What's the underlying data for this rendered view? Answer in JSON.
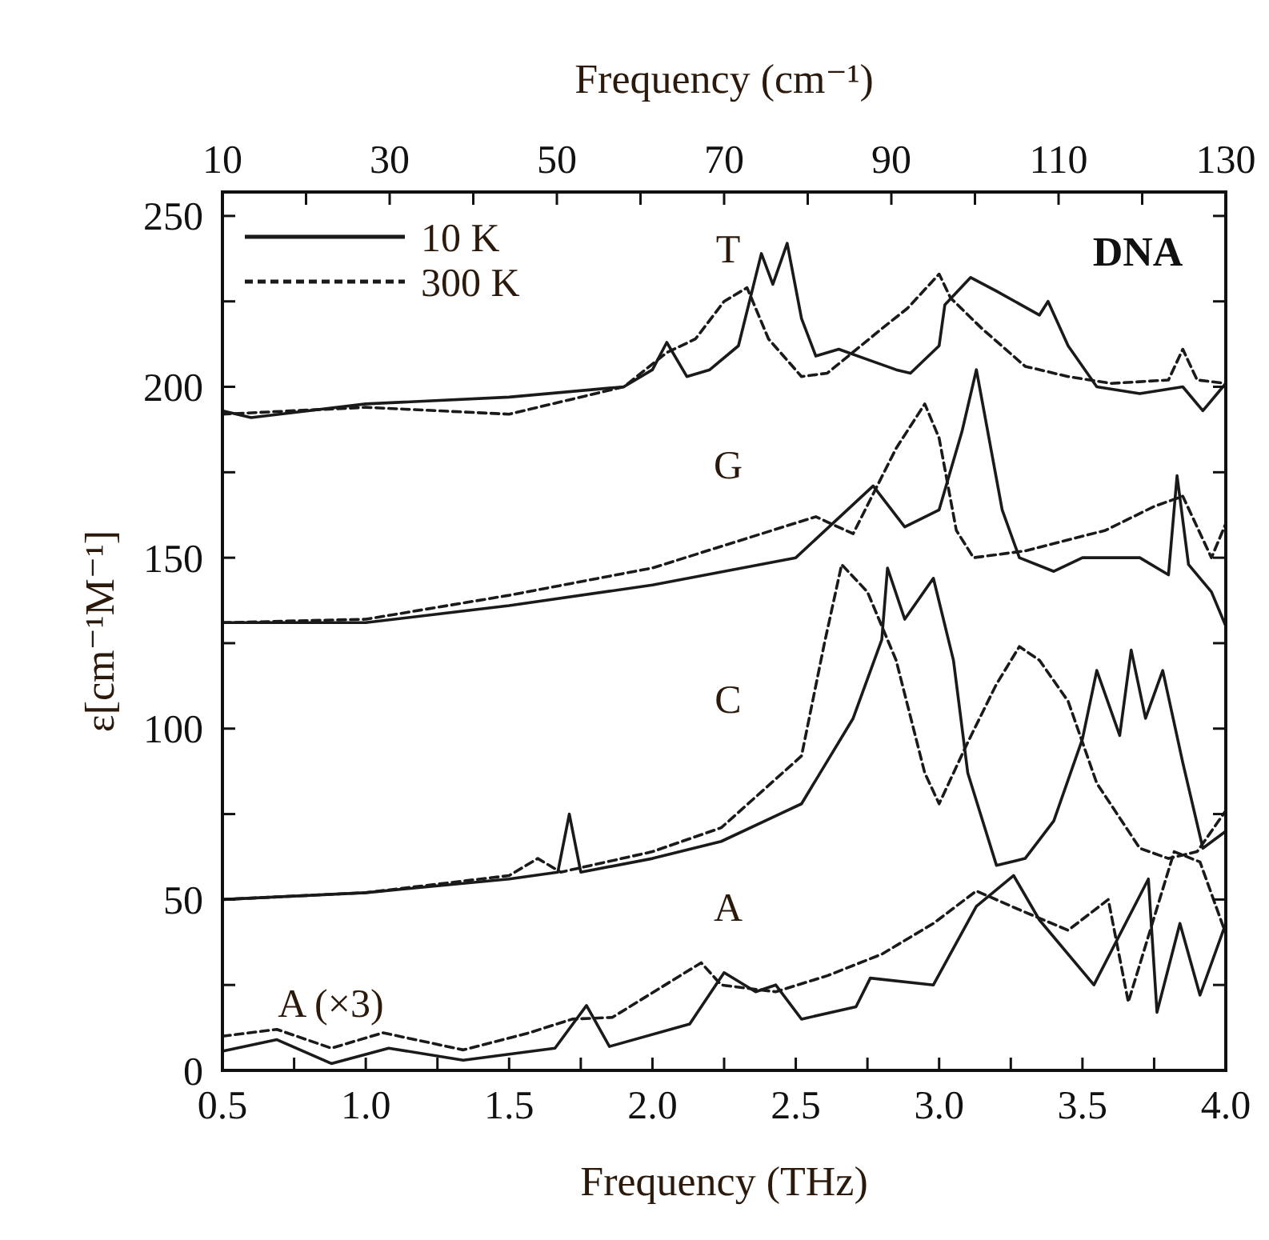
{
  "chart_data": {
    "type": "line",
    "title": "DNA",
    "xlabel": "Frequency (THz)",
    "x2label": "Frequency (cm⁻¹)",
    "ylabel": "ε[cm⁻¹M⁻¹]",
    "xlim": [
      0.5,
      4.0
    ],
    "ylim": [
      0,
      257
    ],
    "x2lim": [
      10,
      130
    ],
    "xticks": [
      {
        "value": 0.5,
        "label": "0.5"
      },
      {
        "value": 0.75,
        "label": null
      },
      {
        "value": 1,
        "label": "1.0"
      },
      {
        "value": 1.25,
        "label": null
      },
      {
        "value": 1.5,
        "label": "1.5"
      },
      {
        "value": 1.75,
        "label": null
      },
      {
        "value": 2,
        "label": "2.0"
      },
      {
        "value": 2.25,
        "label": null
      },
      {
        "value": 2.5,
        "label": "2.5"
      },
      {
        "value": 2.75,
        "label": null
      },
      {
        "value": 3,
        "label": "3.0"
      },
      {
        "value": 3.25,
        "label": null
      },
      {
        "value": 3.5,
        "label": "3.5"
      },
      {
        "value": 3.75,
        "label": null
      },
      {
        "value": 4,
        "label": "4.0"
      }
    ],
    "x2ticks": [
      10,
      {
        "value": 20,
        "label": null
      },
      30,
      {
        "value": 40,
        "label": null
      },
      50,
      {
        "value": 60,
        "label": null
      },
      70,
      {
        "value": 80,
        "label": null
      },
      90,
      {
        "value": 100,
        "label": null
      },
      110,
      {
        "value": 120,
        "label": null
      },
      130
    ],
    "yticks": [
      0,
      {
        "value": 25,
        "label": null
      },
      50,
      {
        "value": 75,
        "label": null
      },
      100,
      {
        "value": 125,
        "label": null
      },
      150,
      {
        "value": 175,
        "label": null
      },
      200,
      {
        "value": 225,
        "label": null
      },
      250
    ],
    "legend": "top left",
    "grid": false,
    "marker": "none",
    "series": [
      {
        "name": "10 K",
        "color": "#1a1a1a",
        "line_style": "solid",
        "x": [
          0.5,
          0.6,
          1.0,
          1.5,
          1.9,
          2.0,
          2.05,
          2.12,
          2.2,
          2.3,
          2.38,
          2.42,
          2.47,
          2.52,
          2.57,
          2.65,
          2.75,
          2.85,
          2.9,
          3.0,
          3.02,
          3.11,
          3.2,
          3.35,
          3.38,
          3.45,
          3.55,
          3.7,
          3.85,
          3.92,
          4.0
        ],
        "values": [
          193,
          191,
          195,
          197,
          200,
          205,
          213,
          203,
          205,
          212,
          239,
          230,
          242,
          220,
          209,
          211,
          208,
          205,
          204,
          212,
          224,
          232,
          228,
          221,
          225,
          212,
          200,
          198,
          200,
          193,
          201
        ]
      },
      {
        "name": "300 K",
        "color": "#1a1a1a",
        "line_style": "dashed",
        "x": [
          0.5,
          1.0,
          1.5,
          1.9,
          2.05,
          2.15,
          2.25,
          2.33,
          2.405,
          2.52,
          2.61,
          2.8,
          2.89,
          3.0,
          3.04,
          3.15,
          3.3,
          3.45,
          3.6,
          3.8,
          3.85,
          3.9,
          4.0
        ],
        "values": [
          192,
          194,
          192,
          200,
          210,
          214,
          225,
          229,
          214,
          203,
          204,
          217,
          223,
          233,
          226,
          217,
          206,
          203,
          201,
          202,
          211,
          202,
          201
        ]
      },
      {
        "color": "#1a1a1a",
        "line_style": "solid",
        "x": [
          0.5,
          1.0,
          1.5,
          2.0,
          2.5,
          2.77,
          2.88,
          3.0,
          3.08,
          3.13,
          3.22,
          3.28,
          3.4,
          3.5,
          3.7,
          3.8,
          3.83,
          3.87,
          3.95,
          4.0
        ],
        "values": [
          131,
          131,
          136,
          142,
          150,
          171,
          159,
          164,
          187,
          205,
          164,
          150,
          146,
          150,
          150,
          145,
          174,
          148,
          140,
          130
        ]
      },
      {
        "color": "#1a1a1a",
        "line_style": "dashed",
        "x": [
          0.5,
          1.0,
          1.5,
          2.0,
          2.57,
          2.7,
          2.85,
          2.95,
          3.0,
          3.06,
          3.12,
          3.3,
          3.58,
          3.75,
          3.85,
          3.95,
          4.0
        ],
        "values": [
          131,
          132,
          139,
          147,
          162,
          157,
          182,
          195,
          185,
          158,
          150,
          152,
          158,
          165,
          168,
          150,
          160
        ]
      },
      {
        "color": "#1a1a1a",
        "line_style": "solid",
        "x": [
          0.5,
          1.0,
          1.5,
          1.67,
          1.71,
          1.75,
          2.0,
          2.24,
          2.52,
          2.7,
          2.8,
          2.82,
          2.88,
          2.98,
          3.05,
          3.1,
          3.2,
          3.3,
          3.4,
          3.5,
          3.55,
          3.63,
          3.67,
          3.72,
          3.78,
          3.85,
          3.92,
          4.0
        ],
        "values": [
          50,
          52,
          56,
          58,
          75,
          58,
          62,
          67,
          78,
          103,
          126,
          147,
          132,
          144,
          120,
          87,
          60,
          62,
          73,
          97,
          117,
          98,
          123,
          103,
          117,
          90,
          65,
          70
        ]
      },
      {
        "color": "#1a1a1a",
        "line_style": "dashed",
        "x": [
          0.5,
          1.0,
          1.5,
          1.6,
          1.68,
          2.0,
          2.24,
          2.52,
          2.6,
          2.66,
          2.75,
          2.85,
          2.95,
          3.0,
          3.1,
          3.2,
          3.28,
          3.35,
          3.45,
          3.55,
          3.7,
          3.8,
          3.9,
          4.0
        ],
        "values": [
          50,
          52,
          57,
          62,
          58,
          64,
          71,
          92,
          125,
          148,
          140,
          120,
          87,
          78,
          96,
          113,
          124,
          120,
          108,
          84,
          65,
          62,
          64,
          76
        ]
      },
      {
        "color": "#1a1a1a",
        "line_style": "solid",
        "x": [
          0.5,
          0.69,
          0.88,
          1.08,
          1.34,
          1.66,
          1.77,
          1.85,
          2.13,
          2.25,
          2.36,
          2.43,
          2.52,
          2.71,
          2.76,
          2.98,
          3.13,
          3.26,
          3.35,
          3.54,
          3.73,
          3.76,
          3.84,
          3.91,
          4.0
        ],
        "values": [
          5.6,
          9,
          2,
          6.5,
          3,
          6.5,
          19,
          7,
          13.6,
          28.6,
          23,
          25,
          15,
          18.6,
          27,
          25,
          48,
          57,
          44,
          25,
          56,
          17,
          43,
          22,
          43
        ]
      },
      {
        "color": "#1a1a1a",
        "line_style": "dashed",
        "x": [
          0.5,
          0.69,
          0.88,
          1.06,
          1.34,
          1.57,
          1.72,
          1.86,
          2.17,
          2.24,
          2.43,
          2.61,
          2.8,
          2.98,
          3.13,
          3.28,
          3.45,
          3.59,
          3.66,
          3.82,
          3.91,
          4.0
        ],
        "values": [
          10,
          12,
          6.5,
          11,
          6,
          11,
          15,
          15.5,
          31.5,
          25,
          23,
          27.7,
          34,
          43,
          52.5,
          47,
          41,
          50,
          20,
          64,
          61,
          40
        ]
      }
    ],
    "annotations": [
      "T",
      "G",
      "C",
      "A",
      "A (×3)"
    ]
  }
}
